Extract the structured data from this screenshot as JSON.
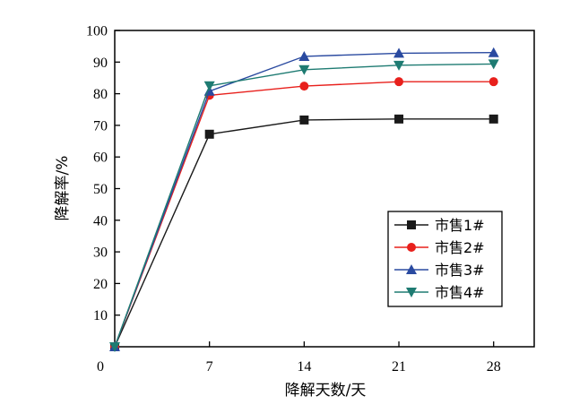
{
  "chart_data": {
    "type": "line",
    "title": "",
    "xlabel": "降解天数/天",
    "ylabel": "降解率/%",
    "xlim": [
      0,
      31
    ],
    "ylim": [
      0,
      100
    ],
    "x_ticks": [
      7,
      14,
      21,
      28
    ],
    "y_ticks": [
      10,
      20,
      30,
      40,
      50,
      60,
      70,
      80,
      90,
      100
    ],
    "origin_label": "0",
    "grid": false,
    "legend_position": "bottom-right",
    "x": [
      0,
      7,
      14,
      21,
      28
    ],
    "series": [
      {
        "name": "市售1#",
        "marker": "square",
        "color": "#1a1a1a",
        "values": [
          0,
          67.2,
          71.7,
          72.0,
          72.0
        ]
      },
      {
        "name": "市售2#",
        "marker": "circle",
        "color": "#e8201c",
        "values": [
          0,
          79.5,
          82.4,
          83.8,
          83.8
        ]
      },
      {
        "name": "市售3#",
        "marker": "triangle-up",
        "color": "#2a4aa0",
        "values": [
          0,
          80.8,
          91.8,
          92.8,
          93.0
        ]
      },
      {
        "name": "市售4#",
        "marker": "triangle-down",
        "color": "#1e7b72",
        "values": [
          0,
          82.5,
          87.6,
          89.0,
          89.4
        ]
      }
    ]
  }
}
